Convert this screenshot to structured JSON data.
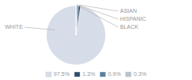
{
  "chart_data": {
    "type": "pie",
    "categories": [
      "WHITE",
      "ASIAN",
      "HISPANIC",
      "BLACK"
    ],
    "values": [
      97.5,
      1.3,
      0.9,
      0.3
    ],
    "value_labels": [
      "97.5%",
      "1.3%",
      "0.9%",
      "0.3%"
    ],
    "colors": [
      "#d6dce8",
      "#2e4d6b",
      "#5a7fa0",
      "#b8c4ce"
    ],
    "legend": "bottom"
  }
}
